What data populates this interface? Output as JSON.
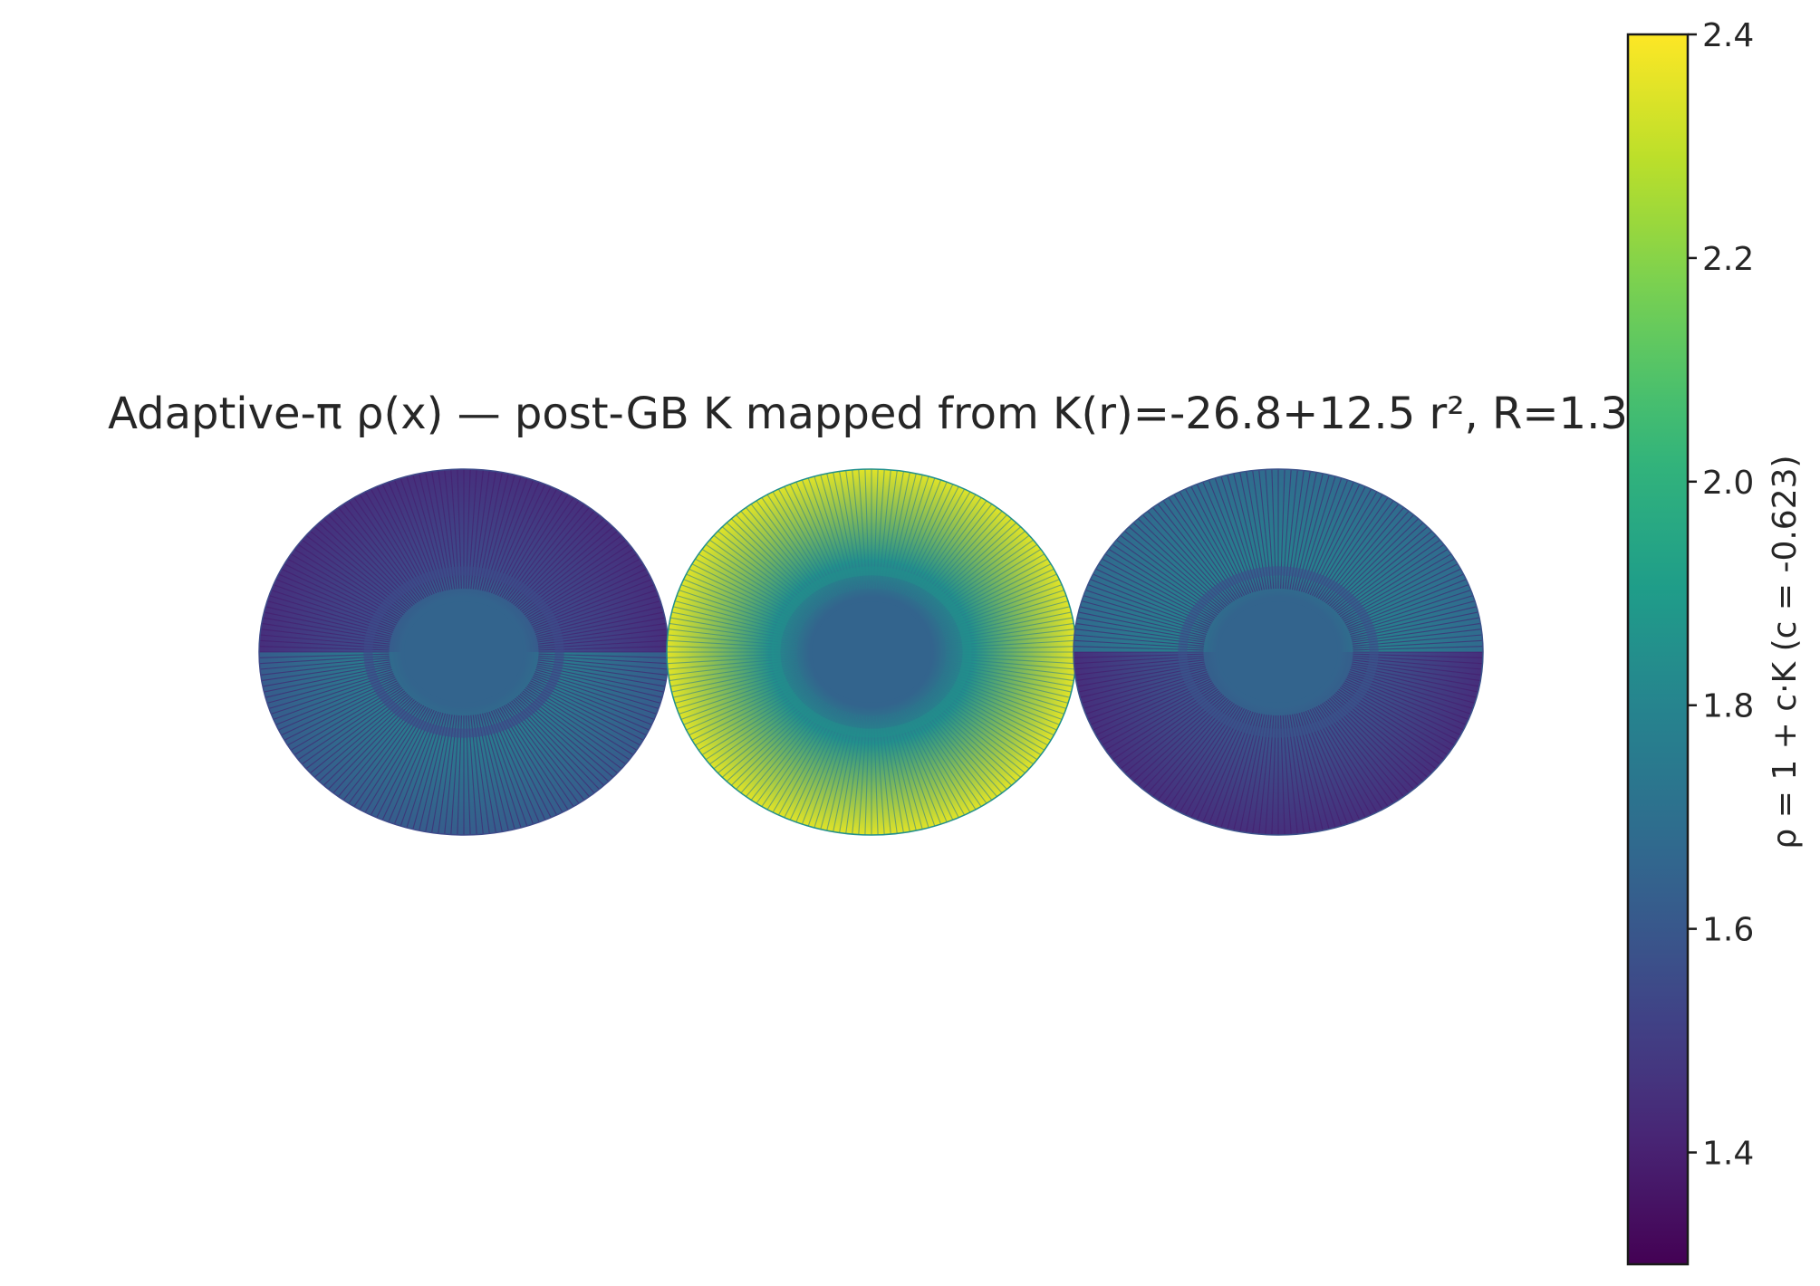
{
  "chart_data": {
    "type": "heatmap",
    "title": "Adaptive-π ρ(x) — post-GB K mapped from K(r)=-26.8+12.5 r², R=1.3",
    "colormap": "viridis",
    "colorbar": {
      "label": "ρ = 1 + c·K  (c = -0.623)",
      "range": [
        1.3,
        2.4
      ],
      "ticks": [
        1.4,
        1.6,
        1.8,
        2.0,
        2.2,
        2.4
      ],
      "tick_labels": [
        "1.4",
        "1.6",
        "1.8",
        "2.0",
        "2.2",
        "2.4"
      ]
    },
    "panels": [
      {
        "name": "left",
        "rim_value": 1.45,
        "mid_value": 1.55,
        "core_value": 1.65,
        "half_split": true,
        "alt_half_rim_value": 1.62,
        "alt_half_mid_value": 1.75
      },
      {
        "name": "center",
        "rim_value": 2.35,
        "mid_value": 1.85,
        "core_value": 1.65,
        "half_split": false
      },
      {
        "name": "right",
        "rim_value": 1.45,
        "mid_value": 1.58,
        "core_value": 1.65,
        "half_split": true,
        "alt_half_rim_value": 1.68,
        "alt_half_mid_value": 1.78
      }
    ],
    "grid": false,
    "axes_visible": false
  }
}
